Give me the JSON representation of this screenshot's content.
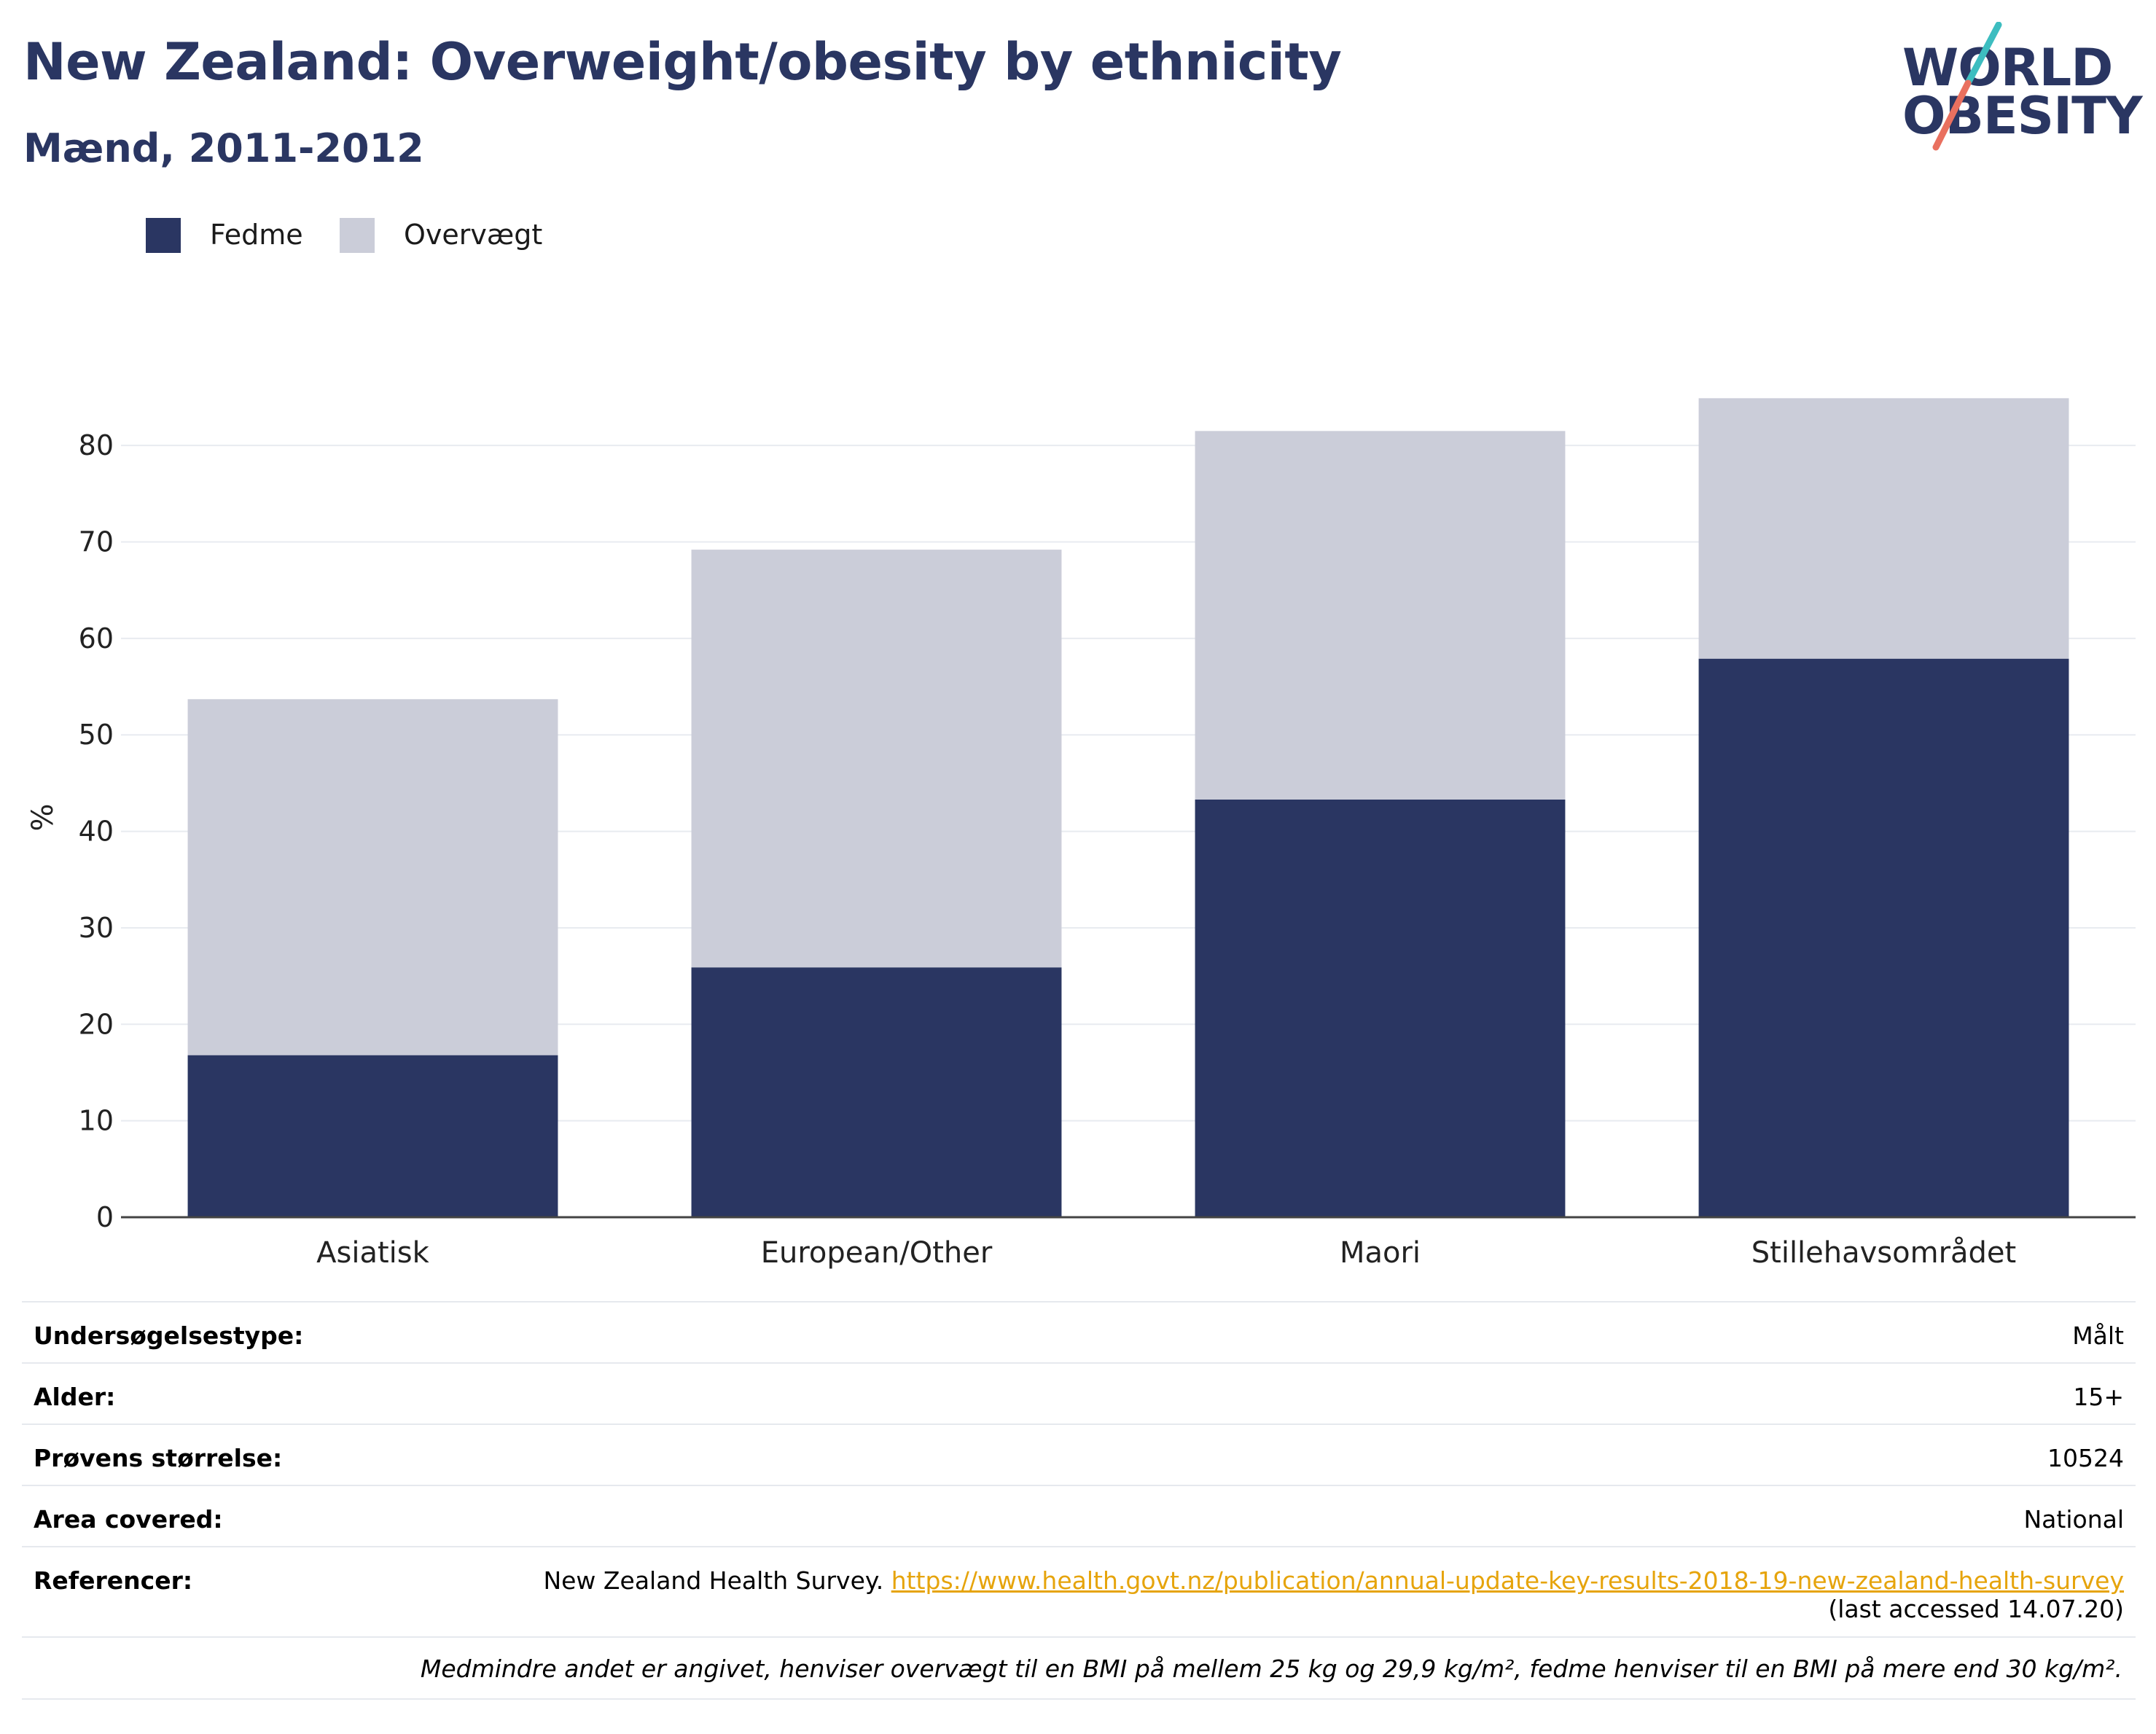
{
  "header": {
    "title": "New Zealand: Overweight/obesity by ethnicity",
    "subtitle": "Mænd, 2011-2012"
  },
  "logo": {
    "line1": "WORLD",
    "line2": "OBESITY"
  },
  "colors": {
    "obesity": "#2a3662",
    "overweight": "#cbcdd9",
    "title": "#2a3662",
    "link": "#e6a40c",
    "logo_slash_teal": "#3dbdc0",
    "logo_slash_coral": "#e9705f"
  },
  "chart_data": {
    "type": "bar",
    "stacked": true,
    "categories": [
      "Asiatisk",
      "European/Other",
      "Maori",
      "Stillehavsområdet"
    ],
    "series": [
      {
        "name": "Fedme",
        "values": [
          16.8,
          25.9,
          43.3,
          57.9
        ]
      },
      {
        "name": "Overvægt",
        "values": [
          36.9,
          43.3,
          38.2,
          27.0
        ]
      }
    ],
    "title": "",
    "xlabel": "",
    "ylabel": "%",
    "ylim": [
      0,
      85
    ],
    "yticks": [
      0,
      10,
      20,
      30,
      40,
      50,
      60,
      70,
      80
    ],
    "grid": true,
    "legend_position": "top-left"
  },
  "info": {
    "rows": [
      {
        "label": "Undersøgelsestype:",
        "value": "Målt"
      },
      {
        "label": "Alder:",
        "value": "15+"
      },
      {
        "label": "Prøvens størrelse:",
        "value": "10524"
      },
      {
        "label": "Area covered:",
        "value": "National"
      }
    ],
    "references": {
      "label": "Referencer:",
      "source": "New Zealand Health Survey. ",
      "url": "https://www.health.govt.nz/publication/annual-update-key-results-2018-19-new-zealand-health-survey",
      "note": "(last accessed 14.07.20)"
    },
    "footnote": "Medmindre andet er angivet, henviser overvægt til en BMI på mellem 25 kg og 29,9 kg/m², fedme henviser til en BMI på mere end 30 kg/m²."
  }
}
